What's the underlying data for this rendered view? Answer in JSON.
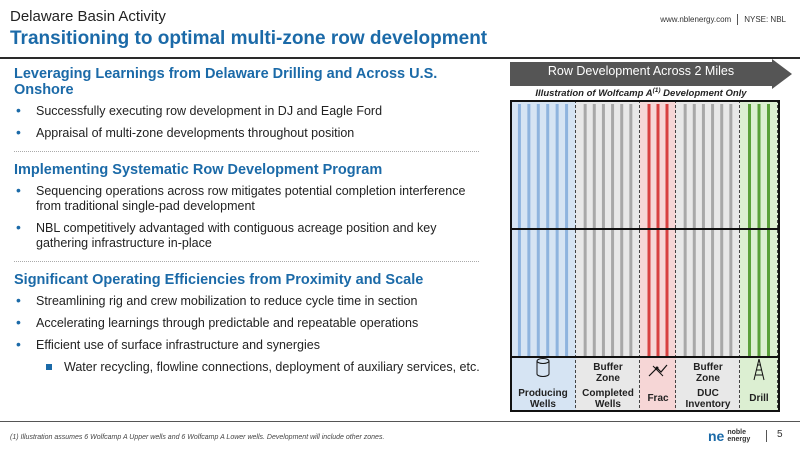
{
  "header": {
    "title": "Delaware Basin Activity",
    "subtitle": "Transitioning to optimal multi-zone row development",
    "website": "www.nblenergy.com",
    "ticker": "NYSE: NBL"
  },
  "sections": [
    {
      "heading": "Leveraging Learnings from Delaware Drilling and Across U.S. Onshore",
      "bullets": [
        "Successfully executing row development in DJ and Eagle Ford",
        "Appraisal of multi-zone developments throughout position"
      ]
    },
    {
      "heading": "Implementing Systematic Row Development Program",
      "bullets": [
        "Sequencing operations across row mitigates potential completion interference from traditional single-pad development",
        "NBL competitively advantaged with contiguous acreage position and key gathering infrastructure in-place"
      ]
    },
    {
      "heading": "Significant Operating Efficiencies from Proximity and Scale",
      "bullets": [
        "Streamlining rig and crew mobilization to reduce cycle time in section",
        "Accelerating learnings through predictable and repeatable operations",
        "Efficient use of surface infrastructure and synergies"
      ],
      "sub_bullets": [
        "Water recycling, flowline connections, deployment of auxiliary services, etc."
      ]
    }
  ],
  "diagram": {
    "arrow_label": "Row Development Across 2 Miles",
    "illustration_title_pre": "Illustration of Wolfcamp A",
    "illustration_sup": "(1)",
    "illustration_title_post": " Development Only",
    "zones": [
      {
        "top_label": "",
        "label": "Producing Wells",
        "color": "#8fb4de",
        "fill": "#d6e4f3",
        "icon": "oil-tank-icon"
      },
      {
        "top_label": "Buffer Zone",
        "label": "Completed Wells",
        "color": "#a8a8a8",
        "fill": "#e8e8e8",
        "icon": ""
      },
      {
        "top_label": "",
        "label": "Frac",
        "color": "#d84040",
        "fill": "#f6d6d6",
        "icon": "frac-icon"
      },
      {
        "top_label": "Buffer Zone",
        "label": "DUC Inventory",
        "color": "#a8a8a8",
        "fill": "#e8e8e8",
        "icon": ""
      },
      {
        "top_label": "",
        "label": "Drill",
        "color": "#5aa03a",
        "fill": "#dcefd2",
        "icon": "drill-rig-icon"
      }
    ],
    "colors": {
      "arrow": "#555555",
      "frame": "#111111"
    }
  },
  "footer": {
    "footnote": "(1)    Illustration assumes 6 Wolfcamp A Upper wells and 6 Wolfcamp A Lower wells.  Development will include other zones.",
    "logo_line1": "noble",
    "logo_line2": "energy",
    "page": "5"
  }
}
